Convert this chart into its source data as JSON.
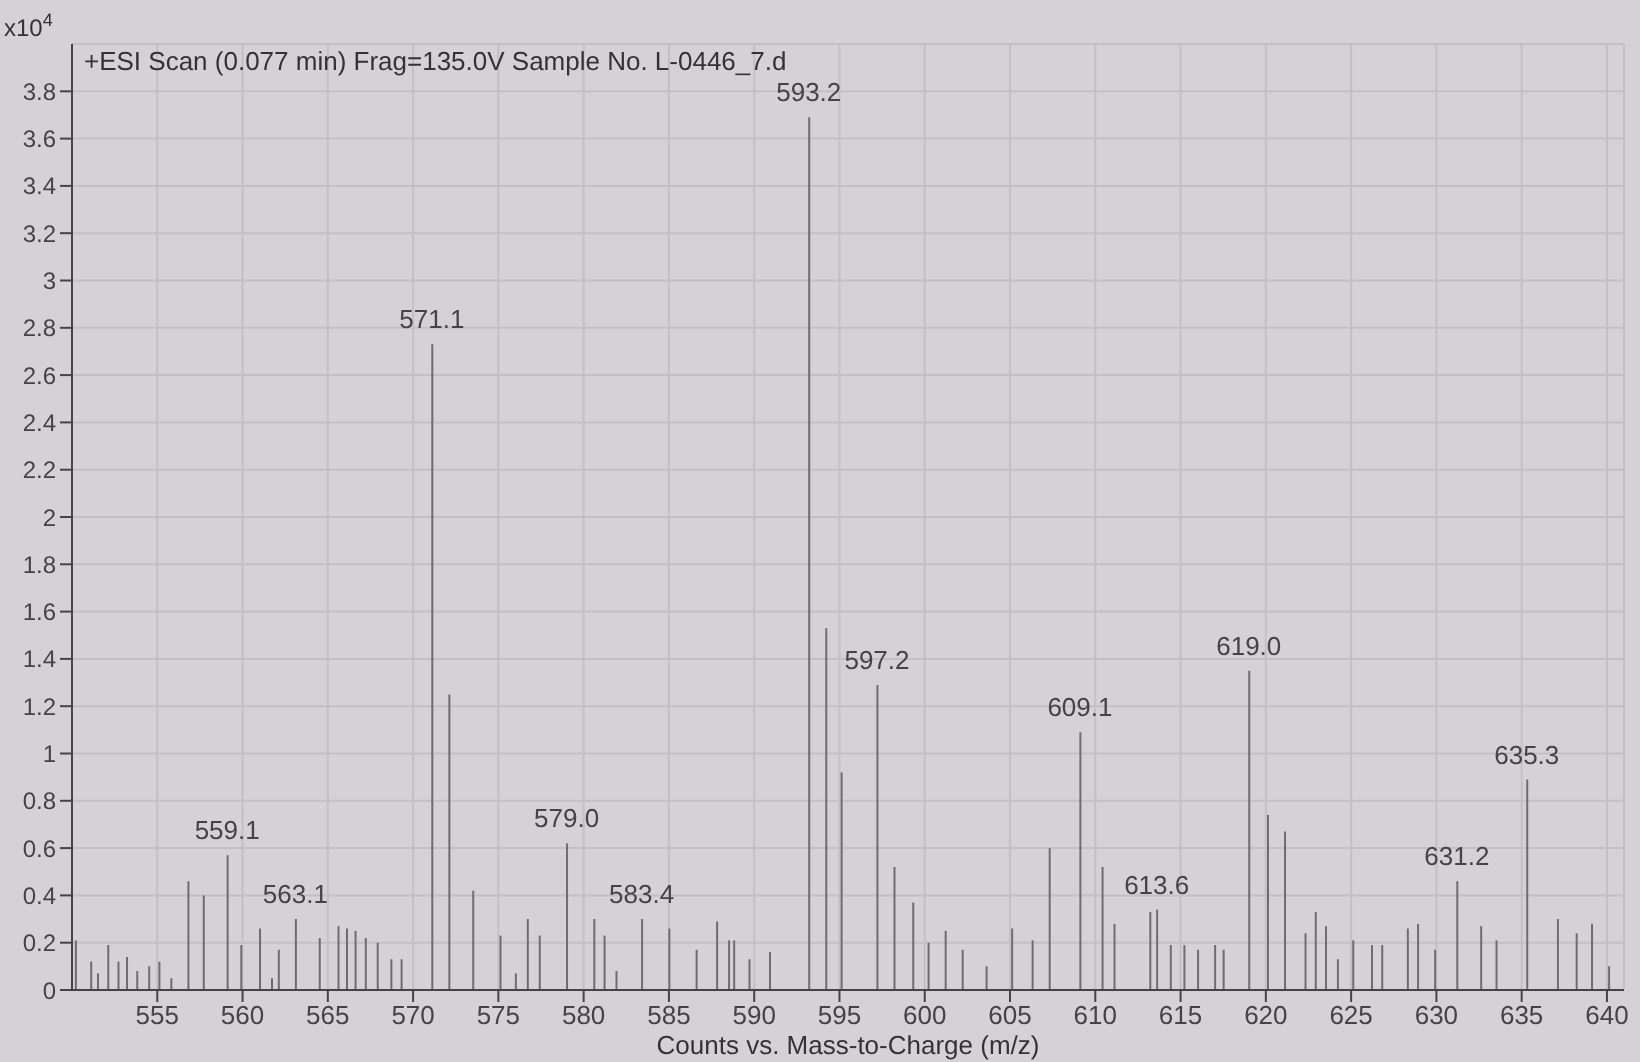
{
  "chart_data": {
    "type": "bar",
    "title": "+ESI Scan (0.077 min) Frag=135.0V Sample No. L-0446_7.d",
    "xlabel": "Counts vs. Mass-to-Charge (m/z)",
    "ylabel": "x10$^{4}$",
    "color": "#6e6c70",
    "grid": true,
    "x": [
      550.2,
      551.1,
      551.5,
      552.1,
      552.7,
      553.2,
      553.8,
      554.5,
      555.1,
      555.8,
      556.8,
      557.7,
      559.1,
      559.9,
      561.0,
      561.7,
      562.1,
      563.1,
      564.5,
      565.6,
      566.1,
      566.6,
      567.2,
      567.9,
      568.7,
      569.3,
      571.1,
      572.1,
      573.5,
      575.1,
      576.0,
      576.7,
      577.4,
      579.0,
      580.6,
      581.2,
      581.9,
      583.4,
      585.0,
      586.6,
      587.8,
      588.5,
      588.8,
      589.7,
      590.9,
      593.2,
      594.2,
      595.1,
      597.2,
      598.2,
      599.3,
      600.2,
      601.2,
      602.2,
      603.6,
      605.1,
      606.3,
      607.3,
      609.1,
      610.4,
      611.1,
      613.2,
      613.6,
      614.4,
      615.2,
      616.0,
      617.0,
      617.5,
      619.0,
      620.1,
      621.1,
      622.3,
      622.9,
      623.5,
      624.2,
      625.1,
      626.2,
      626.8,
      628.3,
      628.9,
      629.9,
      631.2,
      632.6,
      633.5,
      635.3,
      637.1,
      638.2,
      639.1,
      640.1
    ],
    "values": [
      0.21,
      0.12,
      0.07,
      0.19,
      0.12,
      0.14,
      0.08,
      0.1,
      0.12,
      0.05,
      0.46,
      0.4,
      0.57,
      0.19,
      0.26,
      0.05,
      0.17,
      0.3,
      0.22,
      0.27,
      0.26,
      0.25,
      0.22,
      0.2,
      0.13,
      0.13,
      2.73,
      1.25,
      0.42,
      0.23,
      0.07,
      0.3,
      0.23,
      0.62,
      0.3,
      0.23,
      0.08,
      0.3,
      0.26,
      0.17,
      0.29,
      0.21,
      0.21,
      0.13,
      0.16,
      3.69,
      1.53,
      0.92,
      1.29,
      0.52,
      0.37,
      0.2,
      0.25,
      0.17,
      0.1,
      0.26,
      0.21,
      0.6,
      1.09,
      0.52,
      0.28,
      0.33,
      0.34,
      0.19,
      0.19,
      0.17,
      0.19,
      0.17,
      1.35,
      0.74,
      0.67,
      0.24,
      0.33,
      0.27,
      0.13,
      0.21,
      0.19,
      0.19,
      0.26,
      0.28,
      0.17,
      0.46,
      0.27,
      0.21,
      0.89,
      0.3,
      0.24,
      0.28,
      0.1
    ],
    "xlim": [
      550,
      641
    ],
    "xticks": [
      555,
      560,
      565,
      570,
      575,
      580,
      585,
      590,
      595,
      600,
      605,
      610,
      615,
      620,
      625,
      630,
      635,
      640
    ],
    "ylim": [
      0,
      4
    ],
    "yticks": [
      0,
      0.2,
      0.4,
      0.6,
      0.8,
      1,
      1.2,
      1.4,
      1.6,
      1.8,
      2,
      2.2,
      2.4,
      2.6,
      2.8,
      3,
      3.2,
      3.4,
      3.6,
      3.8
    ],
    "annotations": [
      {
        "text": "559.1",
        "x": 559.1,
        "y": 0.57
      },
      {
        "text": "563.1",
        "x": 563.1,
        "y": 0.3
      },
      {
        "text": "571.1",
        "x": 571.1,
        "y": 2.73
      },
      {
        "text": "579.0",
        "x": 579.0,
        "y": 0.62
      },
      {
        "text": "583.4",
        "x": 583.4,
        "y": 0.3
      },
      {
        "text": "593.2",
        "x": 593.2,
        "y": 3.69
      },
      {
        "text": "597.2",
        "x": 597.2,
        "y": 1.29
      },
      {
        "text": "609.1",
        "x": 609.1,
        "y": 1.09
      },
      {
        "text": "613.6",
        "x": 613.6,
        "y": 0.34
      },
      {
        "text": "619.0",
        "x": 619.0,
        "y": 1.35
      },
      {
        "text": "631.2",
        "x": 631.2,
        "y": 0.46
      },
      {
        "text": "635.3",
        "x": 635.3,
        "y": 0.89
      }
    ]
  }
}
